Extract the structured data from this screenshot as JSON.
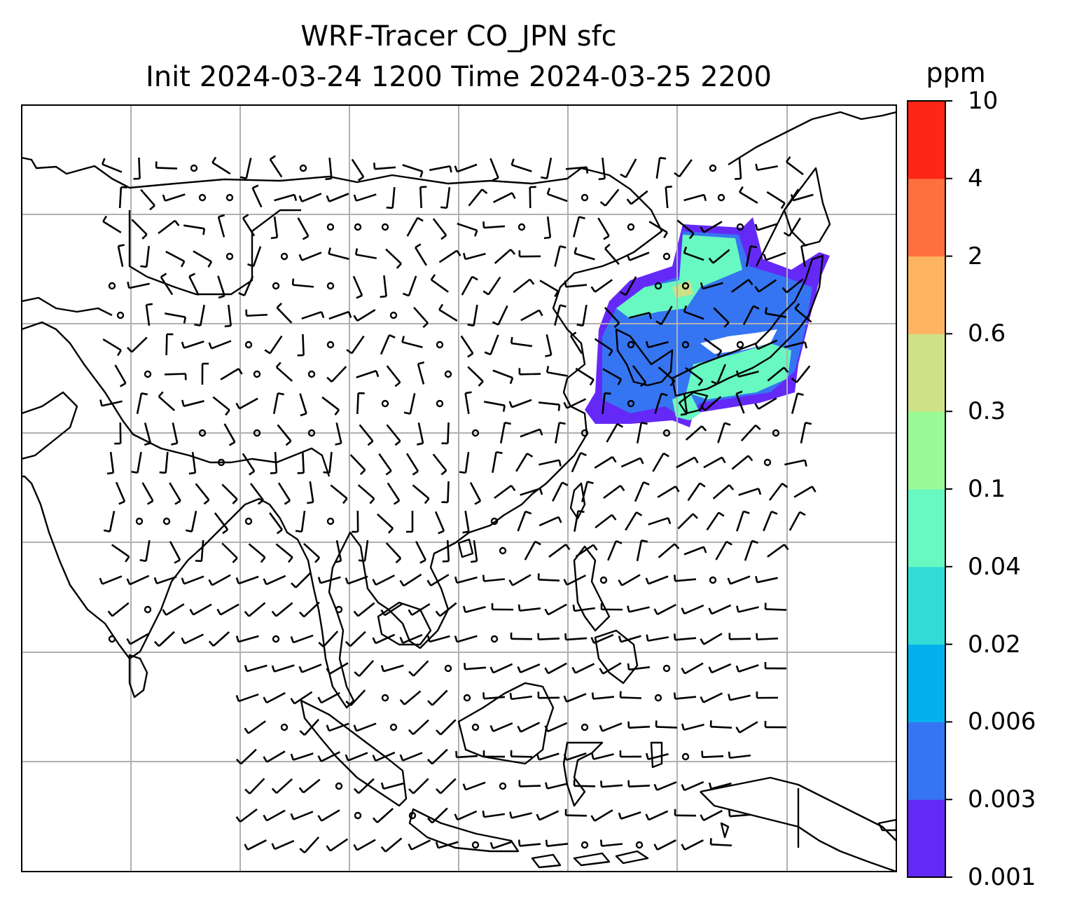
{
  "title": {
    "line1": "WRF-Tracer CO_JPN sfc",
    "line2": "Init 2024-03-24 1200 Time 2024-03-25 2200"
  },
  "colorbar": {
    "unit": "ppm",
    "levels": [
      "0.001",
      "0.003",
      "0.006",
      "0.02",
      "0.04",
      "0.1",
      "0.3",
      "0.6",
      "2",
      "4",
      "10"
    ],
    "colors": [
      "#6529f7",
      "#3575f2",
      "#04b1ec",
      "#32dbd7",
      "#68f8c1",
      "#9afa96",
      "#cfe187",
      "#fdb562",
      "#ff703e",
      "#fe2717"
    ]
  },
  "map": {
    "tracer_colors": {
      "lowest": "#6529f7",
      "low": "#3575f2",
      "mid": "#68f8c1",
      "high": "#cfe187",
      "hole": "#ffffff"
    },
    "gridline_color": "#b0b0b0",
    "coastline_color": "#000000"
  }
}
